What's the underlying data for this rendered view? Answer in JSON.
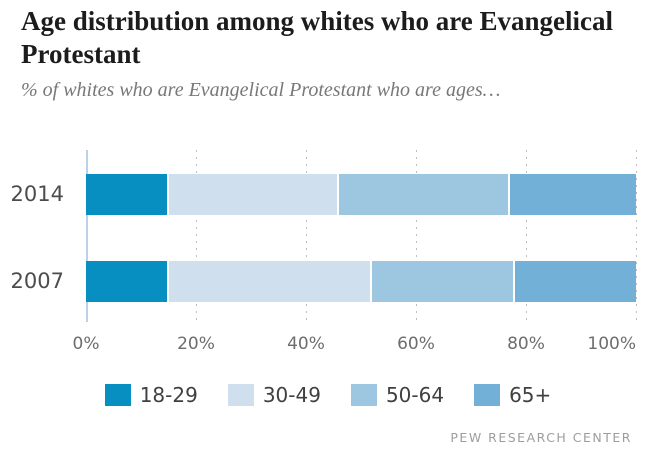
{
  "header": {
    "title": "Age distribution among whites who are Evangelical Protestant",
    "subtitle": "% of whites who are Evangelical Protestant who are ages…"
  },
  "chart_data": {
    "type": "bar",
    "orientation": "horizontal",
    "stacked": true,
    "categories": [
      "2014",
      "2007"
    ],
    "series": [
      {
        "name": "18-29",
        "color": "#068fc0",
        "values": [
          15,
          15
        ]
      },
      {
        "name": "30-49",
        "color": "#cfdfee",
        "values": [
          31,
          37
        ]
      },
      {
        "name": "50-64",
        "color": "#9dc6e1",
        "values": [
          31,
          26
        ]
      },
      {
        "name": "65+",
        "color": "#72b0d7",
        "values": [
          23,
          22
        ]
      }
    ],
    "x_ticks": [
      {
        "label": "0%",
        "value": 0
      },
      {
        "label": "20%",
        "value": 20
      },
      {
        "label": "40%",
        "value": 40
      },
      {
        "label": "60%",
        "value": 60
      },
      {
        "label": "80%",
        "value": 80
      },
      {
        "label": "100%",
        "value": 100
      }
    ],
    "xlim": [
      0,
      100
    ],
    "grid": "dotted-vertical",
    "legend_position": "bottom",
    "colors": {
      "axis_line": "#bcd0e8",
      "gridline": "#bdbdbd",
      "tick_text": "#6d6d6d",
      "category_text": "#4c4c4c"
    }
  },
  "footer": {
    "source_label": "PEW RESEARCH CENTER"
  }
}
